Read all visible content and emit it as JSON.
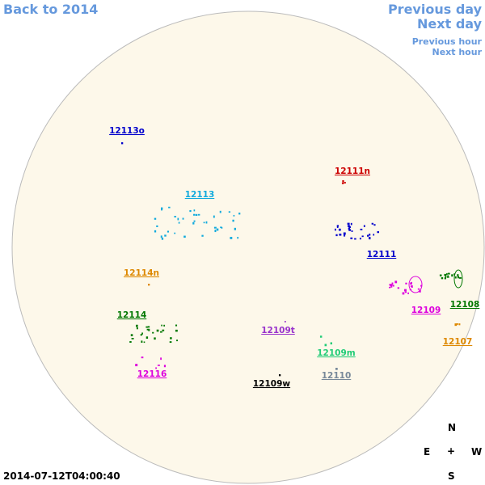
{
  "nav": {
    "back": "Back to 2014",
    "previous_day": "Previous day",
    "next_day": "Next day",
    "previous_hour": "Previous hour",
    "next_hour": "Next hour"
  },
  "regions": [
    {
      "label": "12113o",
      "color": "#0000cc"
    },
    {
      "label": "12111n",
      "color": "#cc0000"
    },
    {
      "label": "12113",
      "color": "#11aadd"
    },
    {
      "label": "12111",
      "color": "#0000cc"
    },
    {
      "label": "12114n",
      "color": "#dd8800"
    },
    {
      "label": "12109",
      "color": "#dd00dd"
    },
    {
      "label": "12108",
      "color": "#007700"
    },
    {
      "label": "12114",
      "color": "#007700"
    },
    {
      "label": "12109t",
      "color": "#9933cc"
    },
    {
      "label": "12107",
      "color": "#dd8800"
    },
    {
      "label": "12109m",
      "color": "#22cc77"
    },
    {
      "label": "12116",
      "color": "#dd00dd"
    },
    {
      "label": "12110",
      "color": "#778899"
    },
    {
      "label": "12109w",
      "color": "#000000"
    }
  ],
  "compass": {
    "north": "N",
    "east": "E",
    "center": "+",
    "west": "W",
    "south": "S"
  },
  "timestamp": "2014-07-12T04:00:40"
}
